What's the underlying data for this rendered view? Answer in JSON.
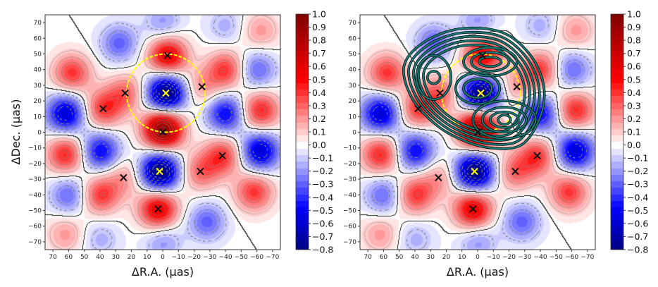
{
  "chart_data": {
    "type": "heatmap",
    "panels": [
      {
        "name": "left",
        "overlay": false
      },
      {
        "name": "right",
        "overlay": true
      }
    ],
    "xlabel": "ΔR.A. (μas)",
    "ylabel": "ΔDec. (μas)",
    "xlim": [
      75,
      -75
    ],
    "ylim": [
      -75,
      75
    ],
    "xticks": [
      70,
      60,
      50,
      40,
      30,
      20,
      10,
      0,
      -10,
      -20,
      -30,
      -40,
      -50,
      -60,
      -70
    ],
    "yticks": [
      70,
      60,
      50,
      40,
      30,
      20,
      10,
      0,
      -10,
      -20,
      -30,
      -40,
      -50,
      -60,
      -70
    ],
    "colorbar": {
      "range": [
        -0.8,
        1.0
      ],
      "ticks": [
        "1.0",
        "0.9",
        "0.8",
        "0.7",
        "0.6",
        "0.5",
        "0.4",
        "0.3",
        "0.2",
        "0.1",
        "0.0",
        "−0.1",
        "−0.2",
        "−0.3",
        "−0.4",
        "−0.5",
        "−0.6",
        "−0.7",
        "−0.8"
      ],
      "tick_values": [
        1.0,
        0.9,
        0.8,
        0.7,
        0.6,
        0.5,
        0.4,
        0.3,
        0.2,
        0.1,
        0.0,
        -0.1,
        -0.2,
        -0.3,
        -0.4,
        -0.5,
        -0.6,
        -0.7,
        -0.8
      ],
      "colormap": "seismic"
    },
    "field_components": [
      {
        "ra": 0,
        "dec": 2,
        "amp": 0.95
      },
      {
        "ra": -3,
        "dec": 49,
        "amp": 0.6
      },
      {
        "ra": 3,
        "dec": -49,
        "amp": 0.6
      },
      {
        "ra": 38,
        "dec": 15,
        "amp": 0.4
      },
      {
        "ra": -38,
        "dec": -15,
        "amp": 0.4
      },
      {
        "ra": 24,
        "dec": 25,
        "amp": 0.3
      },
      {
        "ra": -24,
        "dec": -25,
        "amp": 0.3
      },
      {
        "ra": 25,
        "dec": -29,
        "amp": 0.2
      },
      {
        "ra": -25,
        "dec": 29,
        "amp": 0.2
      },
      {
        "ra": 58,
        "dec": 38,
        "amp": 0.4
      },
      {
        "ra": -58,
        "dec": -38,
        "amp": 0.4
      },
      {
        "ra": 62,
        "dec": -14,
        "amp": 0.45
      },
      {
        "ra": -62,
        "dec": 14,
        "amp": 0.45
      },
      {
        "ra": 40,
        "dec": -40,
        "amp": 0.4
      },
      {
        "ra": -40,
        "dec": 40,
        "amp": 0.4
      },
      {
        "ra": 62,
        "dec": -65,
        "amp": 0.2
      },
      {
        "ra": -62,
        "dec": 65,
        "amp": 0.2
      },
      {
        "ra": -2,
        "dec": 25,
        "amp": -0.85
      },
      {
        "ra": 2,
        "dec": -25,
        "amp": -0.85
      },
      {
        "ra": 62,
        "dec": 12,
        "amp": -0.6
      },
      {
        "ra": -62,
        "dec": -12,
        "amp": -0.6
      },
      {
        "ra": 40,
        "dec": -12,
        "amp": -0.5
      },
      {
        "ra": -40,
        "dec": 12,
        "amp": -0.5
      },
      {
        "ra": 28,
        "dec": 57,
        "amp": -0.3
      },
      {
        "ra": -28,
        "dec": -57,
        "amp": -0.3
      },
      {
        "ra": -60,
        "dec": 40,
        "amp": -0.3
      },
      {
        "ra": 60,
        "dec": -40,
        "amp": -0.3
      },
      {
        "ra": -40,
        "dec": 68,
        "amp": -0.15
      },
      {
        "ra": 40,
        "dec": -68,
        "amp": -0.15
      },
      {
        "ra": 0,
        "dec": 70,
        "amp": -0.2
      },
      {
        "ra": 0,
        "dec": -70,
        "amp": -0.2
      }
    ],
    "markers_black": [
      {
        "ra": -3,
        "dec": 49
      },
      {
        "ra": -25,
        "dec": 29
      },
      {
        "ra": 24,
        "dec": 25
      },
      {
        "ra": 38,
        "dec": 15
      },
      {
        "ra": 0,
        "dec": 0
      },
      {
        "ra": -38,
        "dec": -15
      },
      {
        "ra": -24,
        "dec": -25
      },
      {
        "ra": 25,
        "dec": -29
      },
      {
        "ra": 3,
        "dec": -49
      }
    ],
    "markers_yellow": [
      {
        "ra": -2,
        "dec": 25
      },
      {
        "ra": 2,
        "dec": -25
      }
    ],
    "ring": {
      "ra": -2,
      "dec": 25,
      "radius": 25
    },
    "overlay_contours": {
      "base_loop": [
        [
          35,
          57
        ],
        [
          12,
          66
        ],
        [
          -15,
          64
        ],
        [
          -33,
          50
        ],
        [
          -42,
          30
        ],
        [
          -40,
          10
        ],
        [
          -28,
          -8
        ],
        [
          -8,
          -10
        ],
        [
          12,
          -4
        ],
        [
          28,
          6
        ],
        [
          42,
          22
        ],
        [
          47,
          42
        ]
      ],
      "center": [
        2,
        28
      ],
      "scales": [
        1.0,
        0.93,
        0.86,
        0.79,
        0.72
      ],
      "inner": [
        {
          "ra": 0,
          "dec": 28,
          "rx": [
            14,
            9
          ],
          "ry": [
            10,
            6
          ]
        },
        {
          "ra": -8,
          "dec": 45,
          "rx": [
            17,
            12,
            7
          ],
          "ry": [
            9,
            6,
            3
          ]
        },
        {
          "ra": -17,
          "dec": 8,
          "rx": [
            20,
            14,
            9,
            4
          ],
          "ry": [
            12,
            8,
            5,
            3
          ]
        },
        {
          "ra": 28,
          "dec": 35,
          "rx": [
            11,
            4
          ],
          "ry": [
            14,
            4
          ]
        }
      ],
      "color": "#1a7a74"
    },
    "colors": {
      "marker_black": "#111111",
      "marker_yellow": "#ffff00",
      "ring": "#ffff00"
    }
  }
}
